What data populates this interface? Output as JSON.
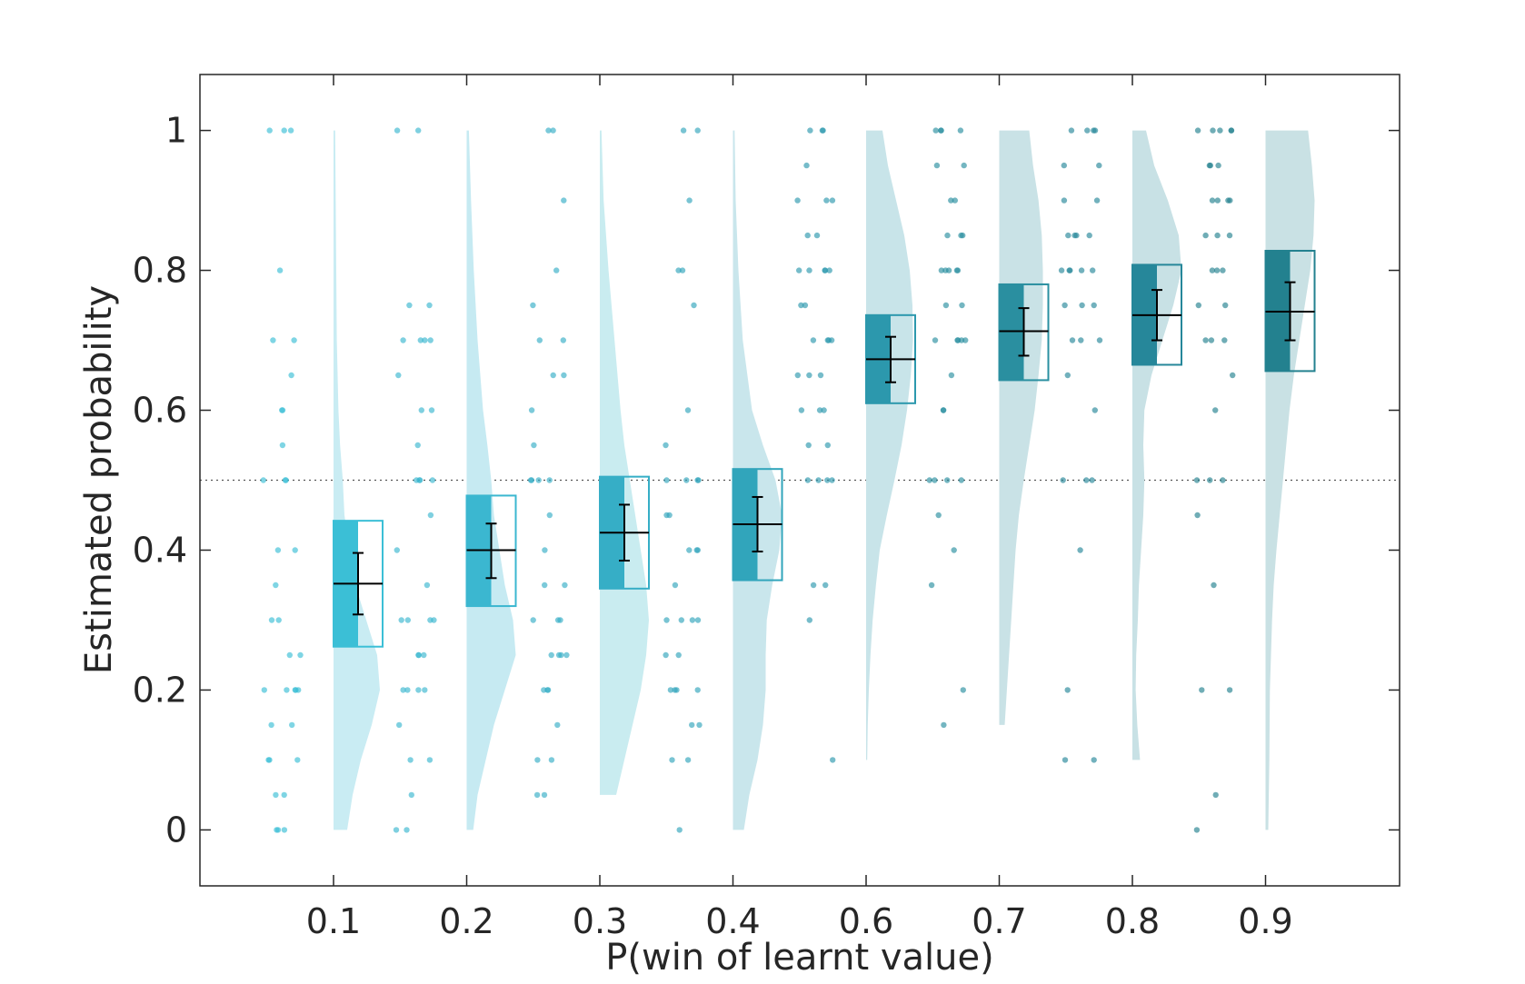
{
  "chart_data": {
    "type": "raincloud",
    "xlabel": "P(win of learnt value)",
    "ylabel": "Estimated probability",
    "categories": [
      "0.1",
      "0.2",
      "0.3",
      "0.4",
      "0.6",
      "0.7",
      "0.8",
      "0.9"
    ],
    "ylim": [
      -0.08,
      1.08
    ],
    "yticks": [
      0,
      0.2,
      0.4,
      0.6,
      0.8,
      1
    ],
    "ytick_labels": [
      "0",
      "0.2",
      "0.4",
      "0.6",
      "0.8",
      "1"
    ],
    "reference_line": 0.5,
    "grid": false,
    "groups": [
      {
        "category": "0.1",
        "color": "#3bbfd6",
        "cloud_color": "#c9ecf3",
        "mean": 0.352,
        "sem_low": 0.308,
        "sem_high": 0.396,
        "box_low": 0.262,
        "box_high": 0.442,
        "density_range": [
          0,
          1
        ],
        "density": [
          [
            0,
            0.25
          ],
          [
            0.05,
            0.35
          ],
          [
            0.1,
            0.5
          ],
          [
            0.15,
            0.7
          ],
          [
            0.2,
            0.85
          ],
          [
            0.25,
            0.8
          ],
          [
            0.3,
            0.6
          ],
          [
            0.35,
            0.4
          ],
          [
            0.4,
            0.3
          ],
          [
            0.45,
            0.2
          ],
          [
            0.5,
            0.17
          ],
          [
            0.55,
            0.12
          ],
          [
            0.6,
            0.09
          ],
          [
            0.7,
            0.06
          ],
          [
            0.8,
            0.05
          ],
          [
            0.9,
            0.04
          ],
          [
            1.0,
            0.03
          ]
        ],
        "points": [
          1,
          1,
          1,
          0.8,
          0.7,
          0.7,
          0.65,
          0.6,
          0.6,
          0.55,
          0.5,
          0.5,
          0.5,
          0.4,
          0.4,
          0.35,
          0.3,
          0.3,
          0.25,
          0.25,
          0.2,
          0.2,
          0.2,
          0.2,
          0.2,
          0.15,
          0.15,
          0.1,
          0.1,
          0.1,
          0.05,
          0.05,
          0,
          0,
          0
        ]
      },
      {
        "category": "0.2",
        "color": "#3bb7d0",
        "cloud_color": "#c6eaf2",
        "mean": 0.4,
        "sem_low": 0.36,
        "sem_high": 0.438,
        "box_low": 0.32,
        "box_high": 0.478,
        "density_range": [
          0,
          1
        ],
        "density": [
          [
            0,
            0.12
          ],
          [
            0.05,
            0.2
          ],
          [
            0.1,
            0.35
          ],
          [
            0.15,
            0.5
          ],
          [
            0.2,
            0.7
          ],
          [
            0.25,
            0.9
          ],
          [
            0.3,
            0.85
          ],
          [
            0.35,
            0.7
          ],
          [
            0.4,
            0.6
          ],
          [
            0.45,
            0.5
          ],
          [
            0.5,
            0.45
          ],
          [
            0.55,
            0.38
          ],
          [
            0.6,
            0.3
          ],
          [
            0.7,
            0.2
          ],
          [
            0.8,
            0.13
          ],
          [
            0.9,
            0.08
          ],
          [
            1.0,
            0.04
          ]
        ],
        "points": [
          1,
          1,
          0.75,
          0.75,
          0.7,
          0.7,
          0.7,
          0.7,
          0.65,
          0.6,
          0.6,
          0.55,
          0.5,
          0.5,
          0.5,
          0.5,
          0.45,
          0.4,
          0.35,
          0.3,
          0.3,
          0.3,
          0.3,
          0.25,
          0.25,
          0.25,
          0.2,
          0.2,
          0.2,
          0.2,
          0.15,
          0.1,
          0.1,
          0.05,
          0,
          0
        ]
      },
      {
        "category": "0.3",
        "color": "#36aec6",
        "cloud_color": "#c9ecf0",
        "mean": 0.425,
        "sem_low": 0.385,
        "sem_high": 0.465,
        "box_low": 0.345,
        "box_high": 0.505,
        "density_range": [
          0.05,
          1
        ],
        "density": [
          [
            0.05,
            0.3
          ],
          [
            0.1,
            0.45
          ],
          [
            0.15,
            0.6
          ],
          [
            0.2,
            0.75
          ],
          [
            0.25,
            0.85
          ],
          [
            0.3,
            0.9
          ],
          [
            0.35,
            0.85
          ],
          [
            0.4,
            0.75
          ],
          [
            0.45,
            0.65
          ],
          [
            0.5,
            0.55
          ],
          [
            0.55,
            0.45
          ],
          [
            0.6,
            0.38
          ],
          [
            0.7,
            0.27
          ],
          [
            0.8,
            0.16
          ],
          [
            0.9,
            0.07
          ],
          [
            1.0,
            0.03
          ]
        ],
        "points": [
          1,
          1,
          0.9,
          0.8,
          0.75,
          0.7,
          0.7,
          0.65,
          0.65,
          0.6,
          0.55,
          0.5,
          0.5,
          0.5,
          0.5,
          0.45,
          0.4,
          0.35,
          0.35,
          0.3,
          0.3,
          0.3,
          0.25,
          0.25,
          0.25,
          0.25,
          0.2,
          0.2,
          0.2,
          0.15,
          0.1,
          0.1,
          0.05,
          0.05
        ]
      },
      {
        "category": "0.4",
        "color": "#31a5bb",
        "cloud_color": "#c9e6ec",
        "mean": 0.437,
        "sem_low": 0.398,
        "sem_high": 0.476,
        "box_low": 0.357,
        "box_high": 0.516,
        "density_range": [
          0,
          1
        ],
        "density": [
          [
            0,
            0.2
          ],
          [
            0.05,
            0.3
          ],
          [
            0.1,
            0.45
          ],
          [
            0.15,
            0.55
          ],
          [
            0.2,
            0.6
          ],
          [
            0.25,
            0.6
          ],
          [
            0.3,
            0.62
          ],
          [
            0.35,
            0.72
          ],
          [
            0.4,
            0.85
          ],
          [
            0.45,
            0.9
          ],
          [
            0.5,
            0.78
          ],
          [
            0.55,
            0.55
          ],
          [
            0.6,
            0.35
          ],
          [
            0.7,
            0.18
          ],
          [
            0.8,
            0.1
          ],
          [
            0.9,
            0.05
          ],
          [
            1.0,
            0.03
          ]
        ],
        "points": [
          1,
          1,
          0.9,
          0.8,
          0.8,
          0.75,
          0.6,
          0.55,
          0.5,
          0.5,
          0.5,
          0.5,
          0.45,
          0.45,
          0.4,
          0.4,
          0.4,
          0.35,
          0.3,
          0.3,
          0.3,
          0.3,
          0.25,
          0.25,
          0.2,
          0.2,
          0.2,
          0.2,
          0.15,
          0.15,
          0.1,
          0.1,
          0
        ]
      },
      {
        "category": "0.6",
        "color": "#2c98ad",
        "cloud_color": "#c8e4e9",
        "mean": 0.673,
        "sem_low": 0.64,
        "sem_high": 0.705,
        "box_low": 0.61,
        "box_high": 0.736,
        "density_range": [
          0.1,
          1
        ],
        "density": [
          [
            0.1,
            0.02
          ],
          [
            0.15,
            0.03
          ],
          [
            0.2,
            0.05
          ],
          [
            0.25,
            0.08
          ],
          [
            0.3,
            0.12
          ],
          [
            0.35,
            0.18
          ],
          [
            0.4,
            0.25
          ],
          [
            0.45,
            0.38
          ],
          [
            0.5,
            0.52
          ],
          [
            0.55,
            0.65
          ],
          [
            0.6,
            0.75
          ],
          [
            0.65,
            0.82
          ],
          [
            0.7,
            0.86
          ],
          [
            0.75,
            0.85
          ],
          [
            0.8,
            0.8
          ],
          [
            0.85,
            0.7
          ],
          [
            0.9,
            0.55
          ],
          [
            0.95,
            0.4
          ],
          [
            1.0,
            0.3
          ]
        ],
        "points": [
          1,
          1,
          1,
          0.95,
          0.9,
          0.9,
          0.9,
          0.85,
          0.85,
          0.8,
          0.8,
          0.8,
          0.8,
          0.8,
          0.75,
          0.75,
          0.7,
          0.7,
          0.7,
          0.7,
          0.65,
          0.65,
          0.65,
          0.6,
          0.6,
          0.6,
          0.55,
          0.55,
          0.5,
          0.5,
          0.5,
          0.5,
          0.35,
          0.35,
          0.3,
          0.1
        ]
      },
      {
        "category": "0.7",
        "color": "#2a8fa0",
        "cloud_color": "#c9e2e6",
        "mean": 0.713,
        "sem_low": 0.678,
        "sem_high": 0.746,
        "box_low": 0.643,
        "box_high": 0.78,
        "density_range": [
          0.15,
          1
        ],
        "density": [
          [
            0.15,
            0.1
          ],
          [
            0.2,
            0.14
          ],
          [
            0.3,
            0.22
          ],
          [
            0.4,
            0.3
          ],
          [
            0.45,
            0.36
          ],
          [
            0.5,
            0.45
          ],
          [
            0.55,
            0.55
          ],
          [
            0.6,
            0.65
          ],
          [
            0.65,
            0.72
          ],
          [
            0.7,
            0.78
          ],
          [
            0.75,
            0.8
          ],
          [
            0.8,
            0.8
          ],
          [
            0.85,
            0.78
          ],
          [
            0.9,
            0.72
          ],
          [
            0.95,
            0.62
          ],
          [
            1.0,
            0.55
          ]
        ],
        "points": [
          1,
          1,
          1,
          1,
          0.95,
          0.95,
          0.9,
          0.9,
          0.85,
          0.85,
          0.85,
          0.8,
          0.8,
          0.8,
          0.8,
          0.8,
          0.75,
          0.75,
          0.7,
          0.7,
          0.7,
          0.7,
          0.7,
          0.65,
          0.6,
          0.6,
          0.5,
          0.5,
          0.5,
          0.5,
          0.45,
          0.4,
          0.35,
          0.2,
          0.15
        ]
      },
      {
        "category": "0.8",
        "color": "#26879a",
        "cloud_color": "#c8e1e5",
        "mean": 0.736,
        "sem_low": 0.7,
        "sem_high": 0.772,
        "box_low": 0.665,
        "box_high": 0.808,
        "density_range": [
          0.1,
          1
        ],
        "density": [
          [
            0.1,
            0.14
          ],
          [
            0.15,
            0.09
          ],
          [
            0.2,
            0.06
          ],
          [
            0.25,
            0.07
          ],
          [
            0.3,
            0.1
          ],
          [
            0.35,
            0.12
          ],
          [
            0.4,
            0.16
          ],
          [
            0.45,
            0.2
          ],
          [
            0.5,
            0.22
          ],
          [
            0.55,
            0.2
          ],
          [
            0.6,
            0.22
          ],
          [
            0.65,
            0.35
          ],
          [
            0.7,
            0.55
          ],
          [
            0.75,
            0.75
          ],
          [
            0.8,
            0.9
          ],
          [
            0.85,
            0.85
          ],
          [
            0.9,
            0.65
          ],
          [
            0.95,
            0.4
          ],
          [
            1.0,
            0.25
          ]
        ],
        "points": [
          1,
          1,
          1,
          1,
          0.95,
          0.95,
          0.9,
          0.9,
          0.85,
          0.85,
          0.85,
          0.85,
          0.8,
          0.8,
          0.8,
          0.8,
          0.8,
          0.75,
          0.75,
          0.75,
          0.7,
          0.7,
          0.7,
          0.65,
          0.6,
          0.5,
          0.5,
          0.5,
          0.4,
          0.2,
          0.1,
          0.1
        ]
      },
      {
        "category": "0.9",
        "color": "#23818f",
        "cloud_color": "#c9e1e4",
        "mean": 0.741,
        "sem_low": 0.7,
        "sem_high": 0.783,
        "box_low": 0.656,
        "box_high": 0.828,
        "density_range": [
          0,
          1
        ],
        "density": [
          [
            0,
            0.05
          ],
          [
            0.05,
            0.06
          ],
          [
            0.1,
            0.07
          ],
          [
            0.2,
            0.08
          ],
          [
            0.3,
            0.12
          ],
          [
            0.35,
            0.15
          ],
          [
            0.4,
            0.2
          ],
          [
            0.45,
            0.26
          ],
          [
            0.5,
            0.32
          ],
          [
            0.55,
            0.38
          ],
          [
            0.6,
            0.44
          ],
          [
            0.65,
            0.52
          ],
          [
            0.7,
            0.62
          ],
          [
            0.75,
            0.72
          ],
          [
            0.8,
            0.82
          ],
          [
            0.85,
            0.88
          ],
          [
            0.9,
            0.9
          ],
          [
            0.95,
            0.85
          ],
          [
            1.0,
            0.78
          ]
        ],
        "points": [
          1,
          1,
          1,
          1,
          1,
          0.95,
          0.95,
          0.95,
          0.9,
          0.9,
          0.9,
          0.9,
          0.85,
          0.85,
          0.85,
          0.8,
          0.8,
          0.8,
          0.75,
          0.75,
          0.7,
          0.7,
          0.7,
          0.65,
          0.6,
          0.5,
          0.5,
          0.5,
          0.45,
          0.35,
          0.2,
          0.2,
          0.05,
          0
        ]
      }
    ]
  }
}
